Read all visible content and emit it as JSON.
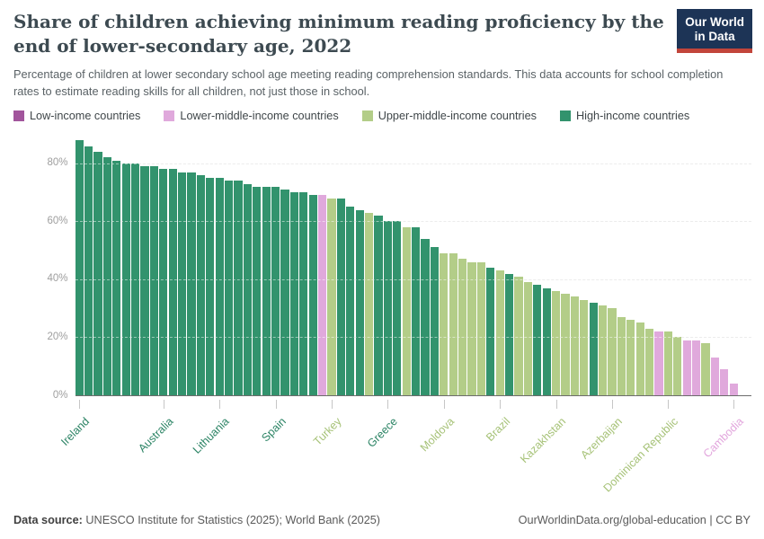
{
  "header": {
    "title": "Share of children achieving minimum reading proficiency by the end of lower-secondary age, 2022",
    "subtitle": "Percentage of children at lower secondary school age meeting reading comprehension standards. This data accounts for school completion rates to estimate reading skills for all children, not just those in school.",
    "logo": {
      "line1": "Our World",
      "line2": "in Data"
    }
  },
  "income_groups": {
    "LIC": {
      "label": "Low-income countries",
      "color": "#a2559c",
      "label_color": "#a2559c"
    },
    "LMC": {
      "label": "Lower-middle-income countries",
      "color": "#e0a9dc",
      "label_color": "#e2a6dd"
    },
    "UMC": {
      "label": "Upper-middle-income countries",
      "color": "#b3cd88",
      "label_color": "#a6c277"
    },
    "HIC": {
      "label": "High-income countries",
      "color": "#32936d",
      "label_color": "#2c8465"
    }
  },
  "legend_order": [
    "LIC",
    "LMC",
    "UMC",
    "HIC"
  ],
  "chart_data": {
    "type": "bar",
    "title": "Share of children achieving minimum reading proficiency by the end of lower-secondary age, 2022",
    "xlabel": "",
    "ylabel": "",
    "unit": "%",
    "ylim": [
      0,
      88
    ],
    "grid": "dashed-horizontal",
    "values": [
      88,
      86,
      84,
      82,
      81,
      80,
      80,
      79,
      79,
      78,
      78,
      77,
      77,
      76,
      75,
      75,
      74,
      74,
      73,
      72,
      72,
      72,
      71,
      70,
      70,
      69,
      69,
      68,
      68,
      65,
      64,
      63,
      62,
      60,
      60,
      58,
      58,
      54,
      51,
      49,
      49,
      47,
      46,
      46,
      44,
      43,
      42,
      41,
      39,
      38,
      37,
      36,
      35,
      34,
      33,
      32,
      31,
      30,
      27,
      26,
      25,
      23,
      22,
      22,
      20,
      19,
      19,
      18,
      13,
      9,
      4
    ],
    "income_group": [
      "HIC",
      "HIC",
      "HIC",
      "HIC",
      "HIC",
      "HIC",
      "HIC",
      "HIC",
      "HIC",
      "HIC",
      "HIC",
      "HIC",
      "HIC",
      "HIC",
      "HIC",
      "HIC",
      "HIC",
      "HIC",
      "HIC",
      "HIC",
      "HIC",
      "HIC",
      "HIC",
      "HIC",
      "HIC",
      "HIC",
      "LMC",
      "UMC",
      "HIC",
      "HIC",
      "HIC",
      "UMC",
      "HIC",
      "HIC",
      "HIC",
      "UMC",
      "HIC",
      "HIC",
      "HIC",
      "UMC",
      "UMC",
      "UMC",
      "UMC",
      "UMC",
      "HIC",
      "UMC",
      "HIC",
      "UMC",
      "UMC",
      "HIC",
      "HIC",
      "UMC",
      "UMC",
      "UMC",
      "UMC",
      "HIC",
      "UMC",
      "UMC",
      "UMC",
      "UMC",
      "UMC",
      "UMC",
      "LMC",
      "UMC",
      "UMC",
      "LMC",
      "LMC",
      "UMC",
      "LMC",
      "LMC",
      "LMC"
    ],
    "x_tick_labels": [
      {
        "bar_index": 0,
        "label": "Ireland"
      },
      {
        "bar_index": 9,
        "label": "Australia"
      },
      {
        "bar_index": 15,
        "label": "Lithuania"
      },
      {
        "bar_index": 21,
        "label": "Spain"
      },
      {
        "bar_index": 27,
        "label": "Turkey"
      },
      {
        "bar_index": 33,
        "label": "Greece"
      },
      {
        "bar_index": 39,
        "label": "Moldova"
      },
      {
        "bar_index": 45,
        "label": "Brazil"
      },
      {
        "bar_index": 51,
        "label": "Kazakhstan"
      },
      {
        "bar_index": 57,
        "label": "Azerbaijan"
      },
      {
        "bar_index": 63,
        "label": "Dominican Republic"
      },
      {
        "bar_index": 70,
        "label": "Cambodia"
      }
    ],
    "y_axis": {
      "tick_values": [
        0,
        20,
        40,
        60,
        80
      ],
      "tick_labels": [
        "0%",
        "20%",
        "40%",
        "60%",
        "80%"
      ]
    },
    "legend_position": "top"
  },
  "footer": {
    "source_label": "Data source:",
    "source_text": " UNESCO Institute for Statistics (2025); World Bank (2025)",
    "license": "OurWorldinData.org/global-education | CC BY"
  }
}
